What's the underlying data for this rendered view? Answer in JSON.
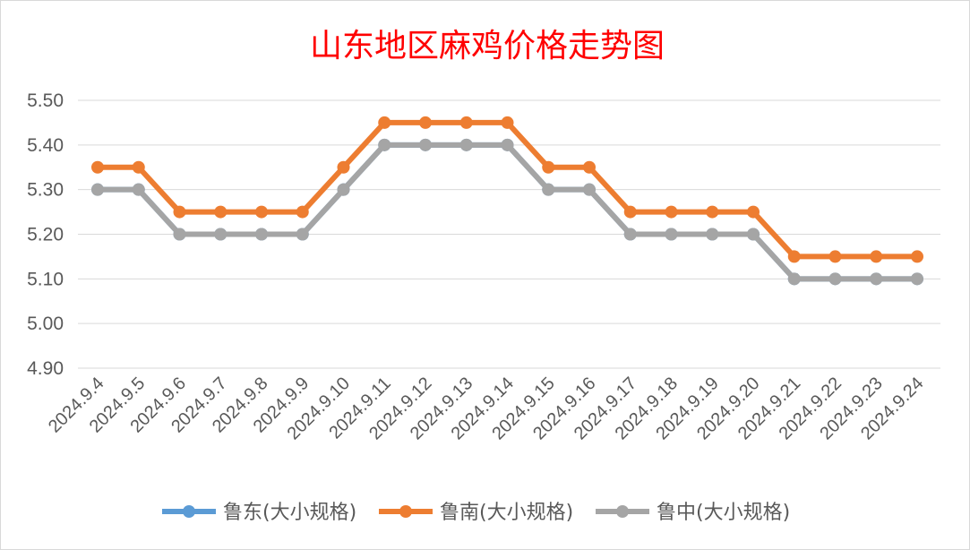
{
  "chart_data": {
    "type": "line",
    "title": "山东地区麻鸡价格走势图",
    "xlabel": "",
    "ylabel": "",
    "categories": [
      "2024.9.4",
      "2024.9.5",
      "2024.9.6",
      "2024.9.7",
      "2024.9.8",
      "2024.9.9",
      "2024.9.10",
      "2024.9.11",
      "2024.9.12",
      "2024.9.13",
      "2024.9.14",
      "2024.9.15",
      "2024.9.16",
      "2024.9.17",
      "2024.9.18",
      "2024.9.19",
      "2024.9.20",
      "2024.9.21",
      "2024.9.22",
      "2024.9.23",
      "2024.9.24"
    ],
    "yticks": [
      "4.90",
      "5.00",
      "5.10",
      "5.20",
      "5.30",
      "5.40",
      "5.50"
    ],
    "ylim": [
      4.9,
      5.5
    ],
    "grid": true,
    "legend_position": "bottom",
    "series": [
      {
        "name": "鲁东(大小规格)",
        "color": "#5b9bd5",
        "values": [
          5.3,
          5.3,
          5.2,
          5.2,
          5.2,
          5.2,
          5.3,
          5.4,
          5.4,
          5.4,
          5.4,
          5.3,
          5.3,
          5.2,
          5.2,
          5.2,
          5.2,
          5.1,
          5.1,
          5.1,
          5.1
        ]
      },
      {
        "name": "鲁南(大小规格)",
        "color": "#ed7d31",
        "values": [
          5.35,
          5.35,
          5.25,
          5.25,
          5.25,
          5.25,
          5.35,
          5.45,
          5.45,
          5.45,
          5.45,
          5.35,
          5.35,
          5.25,
          5.25,
          5.25,
          5.25,
          5.15,
          5.15,
          5.15,
          5.15
        ]
      },
      {
        "name": "鲁中(大小规格)",
        "color": "#a5a5a5",
        "values": [
          5.3,
          5.3,
          5.2,
          5.2,
          5.2,
          5.2,
          5.3,
          5.4,
          5.4,
          5.4,
          5.4,
          5.3,
          5.3,
          5.2,
          5.2,
          5.2,
          5.2,
          5.1,
          5.1,
          5.1,
          5.1
        ]
      }
    ]
  }
}
